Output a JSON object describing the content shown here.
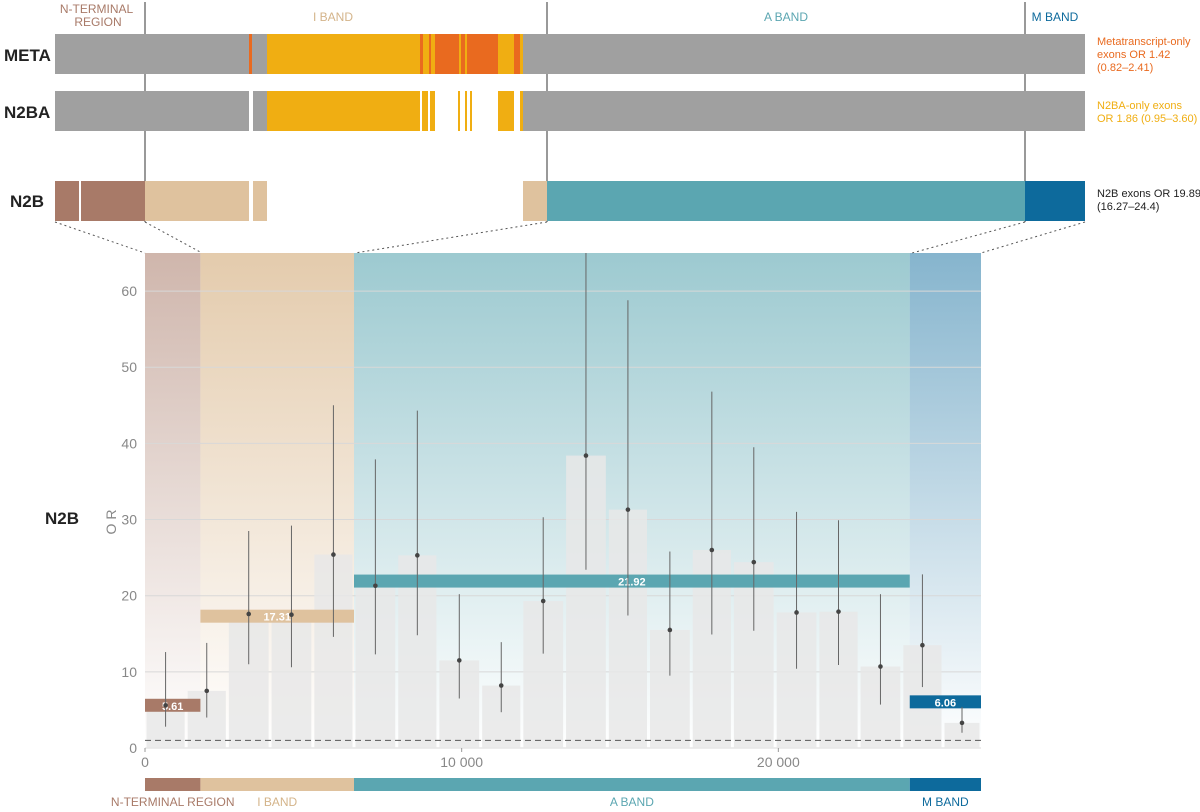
{
  "colors": {
    "nterm": "#a87a68",
    "iband": "#dfc29e",
    "aband": "#5ba6b1",
    "mband": "#0d6a9c",
    "gray": "#a0a0a0",
    "meta_orange": "#e96a1f",
    "n2ba_yellow": "#f0ae12",
    "bin_fill": "#e8e8e8",
    "ci_line": "#666666",
    "grid": "#d8d8d8",
    "text_dark": "#222222",
    "text_muted": "#888888"
  },
  "top_panel": {
    "region_headers": {
      "nterm": "N-TERMINAL\nREGION",
      "iband": "I BAND",
      "aband": "A BAND",
      "mband": "M BAND"
    },
    "tracks": [
      {
        "name": "META",
        "note": "Metatranscript-only\nexons OR 1.42\n(0.82–2.41)",
        "note_color": "#e96a1f"
      },
      {
        "name": "N2BA",
        "note": "N2BA-only exons\nOR 1.86 (0.95–3.60)",
        "note_color": "#f0ae12"
      },
      {
        "name": "N2B",
        "note": "N2B exons OR 19.89\n(16.27–24.4)",
        "note_color": "#222222"
      }
    ]
  },
  "bottom_region_labels": {
    "nterm": "N-TERMINAL REGION",
    "iband": "I BAND",
    "aband": "A BAND",
    "mband": "M BAND"
  },
  "chart_data": {
    "type": "bar",
    "title": "",
    "track_label": "N2B",
    "ylabel": "O R",
    "xlabel": "",
    "xlim": [
      0,
      26400
    ],
    "ylim": [
      0,
      65
    ],
    "y_ticks": [
      0,
      10,
      20,
      30,
      40,
      50,
      60
    ],
    "x_ticks": [
      0,
      10000,
      20000
    ],
    "x_tick_labels": [
      "0",
      "10 000",
      "20 000"
    ],
    "reference_line": 1,
    "regions": [
      {
        "name": "N-TERMINAL REGION",
        "x_start": 0,
        "x_end": 1750
      },
      {
        "name": "I BAND",
        "x_start": 1750,
        "x_end": 6600
      },
      {
        "name": "A BAND",
        "x_start": 6600,
        "x_end": 24150
      },
      {
        "name": "M BAND",
        "x_start": 24150,
        "x_end": 26400
      }
    ],
    "bins": [
      {
        "x_start": 0,
        "x_end": 1300,
        "or": 5.6,
        "ci_low": 2.8,
        "ci_high": 12.6
      },
      {
        "x_start": 1300,
        "x_end": 2600,
        "or": 7.5,
        "ci_low": 4.0,
        "ci_high": 13.8
      },
      {
        "x_start": 2600,
        "x_end": 3950,
        "or": 17.6,
        "ci_low": 11.0,
        "ci_high": 28.5
      },
      {
        "x_start": 3950,
        "x_end": 5300,
        "or": 17.5,
        "ci_low": 10.6,
        "ci_high": 29.2
      },
      {
        "x_start": 5300,
        "x_end": 6600,
        "or": 25.4,
        "ci_low": 14.6,
        "ci_high": 45.0
      },
      {
        "x_start": 6600,
        "x_end": 7950,
        "or": 21.3,
        "ci_low": 12.3,
        "ci_high": 37.9
      },
      {
        "x_start": 7950,
        "x_end": 9250,
        "or": 25.3,
        "ci_low": 14.8,
        "ci_high": 44.3
      },
      {
        "x_start": 9250,
        "x_end": 10600,
        "or": 11.5,
        "ci_low": 6.5,
        "ci_high": 20.2
      },
      {
        "x_start": 10600,
        "x_end": 11900,
        "or": 8.2,
        "ci_low": 4.7,
        "ci_high": 13.9
      },
      {
        "x_start": 11900,
        "x_end": 13250,
        "or": 19.3,
        "ci_low": 12.4,
        "ci_high": 30.3
      },
      {
        "x_start": 13250,
        "x_end": 14600,
        "or": 38.4,
        "ci_low": 23.4,
        "ci_high": 66.0
      },
      {
        "x_start": 14600,
        "x_end": 15900,
        "or": 31.3,
        "ci_low": 17.4,
        "ci_high": 58.8
      },
      {
        "x_start": 15900,
        "x_end": 17250,
        "or": 15.5,
        "ci_low": 9.5,
        "ci_high": 25.8
      },
      {
        "x_start": 17250,
        "x_end": 18550,
        "or": 26.0,
        "ci_low": 14.9,
        "ci_high": 46.8
      },
      {
        "x_start": 18550,
        "x_end": 19900,
        "or": 24.4,
        "ci_low": 15.4,
        "ci_high": 39.5
      },
      {
        "x_start": 19900,
        "x_end": 21250,
        "or": 17.8,
        "ci_low": 10.4,
        "ci_high": 31.0
      },
      {
        "x_start": 21250,
        "x_end": 22550,
        "or": 17.9,
        "ci_low": 10.9,
        "ci_high": 29.9
      },
      {
        "x_start": 22550,
        "x_end": 23900,
        "or": 10.7,
        "ci_low": 5.7,
        "ci_high": 20.2
      },
      {
        "x_start": 23900,
        "x_end": 25200,
        "or": 13.5,
        "ci_low": 8.0,
        "ci_high": 22.8
      },
      {
        "x_start": 25200,
        "x_end": 26400,
        "or": 3.3,
        "ci_low": 2.0,
        "ci_high": 5.4
      }
    ],
    "region_or": [
      {
        "region": "N-TERMINAL REGION",
        "x_start": 0,
        "x_end": 1750,
        "value": 5.61,
        "label": "5.61",
        "color": "#a87a68"
      },
      {
        "region": "I BAND",
        "x_start": 1750,
        "x_end": 6600,
        "value": 17.31,
        "label": "17.31",
        "color": "#dfc29e"
      },
      {
        "region": "A BAND",
        "x_start": 6600,
        "x_end": 24150,
        "value": 21.92,
        "label": "21.92",
        "color": "#5ba6b1"
      },
      {
        "region": "M BAND",
        "x_start": 24150,
        "x_end": 26400,
        "value": 6.06,
        "label": "6.06",
        "color": "#0d6a9c"
      }
    ]
  }
}
